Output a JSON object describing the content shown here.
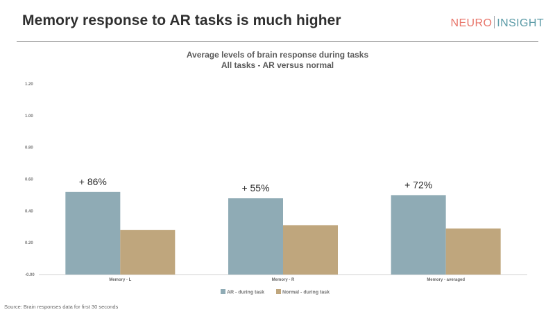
{
  "slide": {
    "title": "Memory response to AR tasks is much higher",
    "source": "Source: Brain responses data for first 30 seconds"
  },
  "logo": {
    "part1": "NEURO",
    "part2": "INSIGHT",
    "colors": {
      "part1": "#e8756a",
      "part2": "#5a9aa6"
    }
  },
  "chart_data": {
    "type": "bar",
    "title": "Average levels of brain response during tasks",
    "subtitle": "All tasks - AR versus normal",
    "xlabel": "",
    "ylabel": "",
    "categories": [
      "Memory - L",
      "Memory - R",
      "Memory - averaged"
    ],
    "series": [
      {
        "name": "AR - during task",
        "values": [
          0.52,
          0.48,
          0.5
        ],
        "color": "#8fabb5"
      },
      {
        "name": "Normal - during task",
        "values": [
          0.28,
          0.31,
          0.29
        ],
        "color": "#bfa67d"
      }
    ],
    "annotations": [
      "+ 86%",
      "+ 55%",
      "+ 72%"
    ],
    "ylim": [
      0,
      1.2
    ],
    "y_ticks": [
      0,
      0.2,
      0.4,
      0.6,
      0.8,
      1.0,
      1.2
    ],
    "y_tick_labels": [
      "-0.00",
      "0.20",
      "0.40",
      "0.60",
      "0.80",
      "1.00",
      "1.20"
    ],
    "grid": false,
    "legend_position": "bottom"
  }
}
